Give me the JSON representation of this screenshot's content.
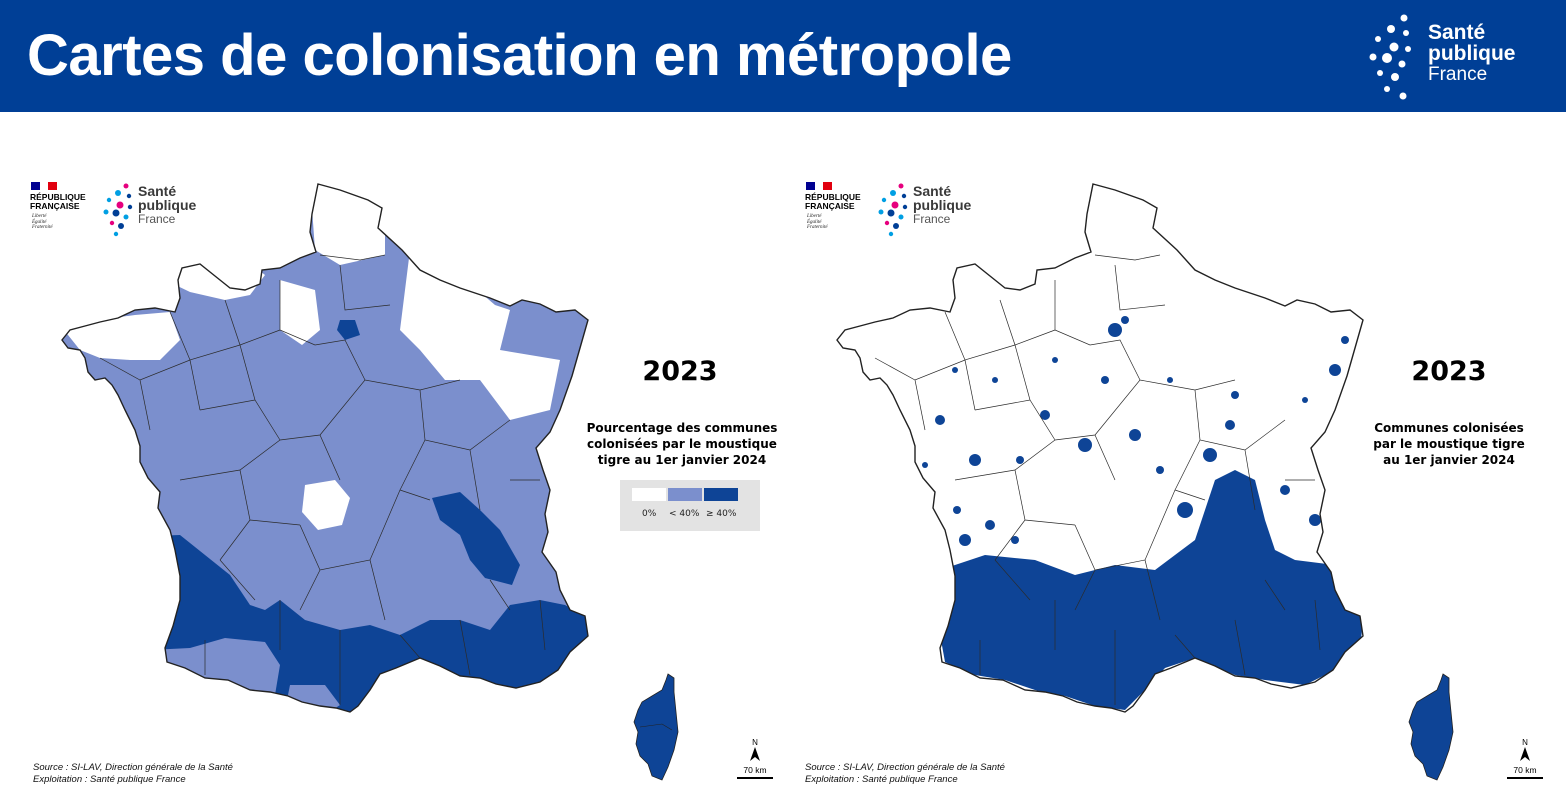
{
  "header": {
    "title": "Cartes de colonisation en métropole"
  },
  "brand": {
    "line1": "Santé",
    "line2": "publique",
    "line3": "France"
  },
  "republique": {
    "line1": "RÉPUBLIQUE",
    "line2": "FRANÇAISE",
    "motto1": "Liberté",
    "motto2": "Égalité",
    "motto3": "Fraternité"
  },
  "colors": {
    "header_bg": "#003f96",
    "cat_zero": "#ffffff",
    "cat_low": "#7b8fcd",
    "cat_high": "#0e4496",
    "colonized": "#0e4496",
    "legend_bg": "#e3e3e3"
  },
  "maps": [
    {
      "year": "2023",
      "legend_title": [
        "Pourcentage des communes",
        "colonisées par le moustique",
        "tigre au 1er janvier 2024"
      ],
      "legend": [
        {
          "label": "0%",
          "color": "#ffffff"
        },
        {
          "label": "< 40%",
          "color": "#7b8fcd"
        },
        {
          "label": "≥ 40%",
          "color": "#0e4496"
        }
      ],
      "source": "Source : SI-LAV, Direction générale de la Santé",
      "exploitation": "Exploitation : Santé publique France",
      "north": "N",
      "scale": "70 km"
    },
    {
      "year": "2023",
      "legend_title": [
        "Communes colonisées",
        "par le moustique tigre",
        "au 1er janvier 2024"
      ],
      "source": "Source : SI-LAV, Direction générale de la Santé",
      "exploitation": "Exploitation : Santé publique France",
      "north": "N",
      "scale": "70 km"
    }
  ]
}
